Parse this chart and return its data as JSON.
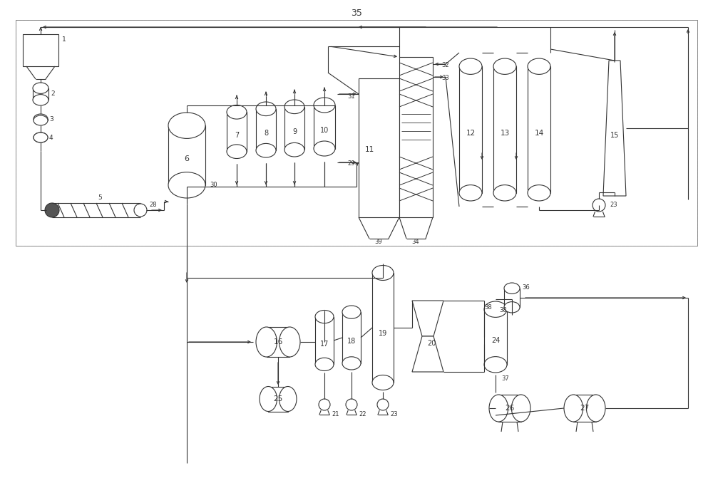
{
  "bg_color": "#ffffff",
  "lw": 0.8,
  "fig_width": 10.0,
  "fig_height": 6.78,
  "dpi": 100
}
